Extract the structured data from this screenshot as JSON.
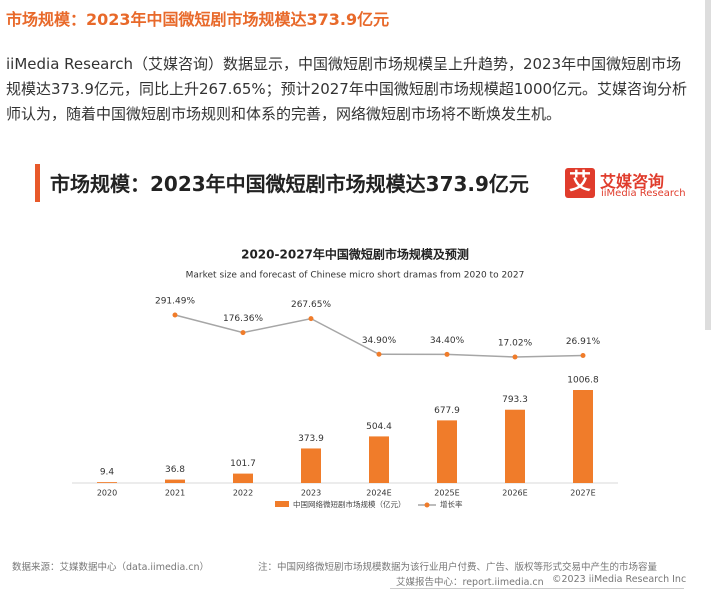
{
  "heading": "市场规模：2023年中国微短剧市场规模达373.9亿元",
  "paragraph": "iiMedia Research（艾媒咨询）数据显示，中国微短剧市场规模呈上升趋势，2023年中国微短剧市场规模达373.9亿元，同比上升267.65%；预计2027年中国微短剧市场规模超1000亿元。艾媒咨询分析师认为，随着中国微短剧市场规则和体系的完善，网络微短剧市场将不断焕发生机。",
  "banner": {
    "title": "市场规模：2023年中国微短剧市场规模达373.9亿元",
    "logo_icon": "艾",
    "logo_name": "艾媒咨询",
    "logo_en": "iiMedia Research"
  },
  "chart_data": {
    "type": "bar",
    "title": "2020-2027年中国微短剧市场规模及预测",
    "subtitle": "Market size and forecast of Chinese micro short dramas from 2020 to 2027",
    "categories": [
      "2020",
      "2021",
      "2022",
      "2023",
      "2024E",
      "2025E",
      "2026E",
      "2027E"
    ],
    "series": [
      {
        "name": "中国网络微短剧市场规模（亿元）",
        "type": "bar",
        "color": "#f07c2a",
        "values": [
          9.4,
          36.8,
          101.7,
          373.9,
          504.4,
          677.9,
          793.3,
          1006.8
        ]
      },
      {
        "name": "增长率",
        "type": "line",
        "color": "#a6a6a6",
        "marker_color": "#f07c2a",
        "values": [
          null,
          291.49,
          176.36,
          267.65,
          34.9,
          34.4,
          17.02,
          26.91
        ],
        "value_labels": [
          null,
          "291.49%",
          "176.36%",
          "267.65%",
          "34.90%",
          "34.40%",
          "17.02%",
          "26.91%"
        ]
      }
    ]
  },
  "footer": {
    "source": "数据来源：艾媒数据中心（data.iimedia.cn）",
    "note": "注：中国网络微短剧市场规模数据为该行业用户付费、广告、版权等形式交易中产生的市场容量",
    "report": "艾媒报告中心：report.iimedia.cn",
    "copyright": "©2023  iiMedia Research Inc"
  }
}
